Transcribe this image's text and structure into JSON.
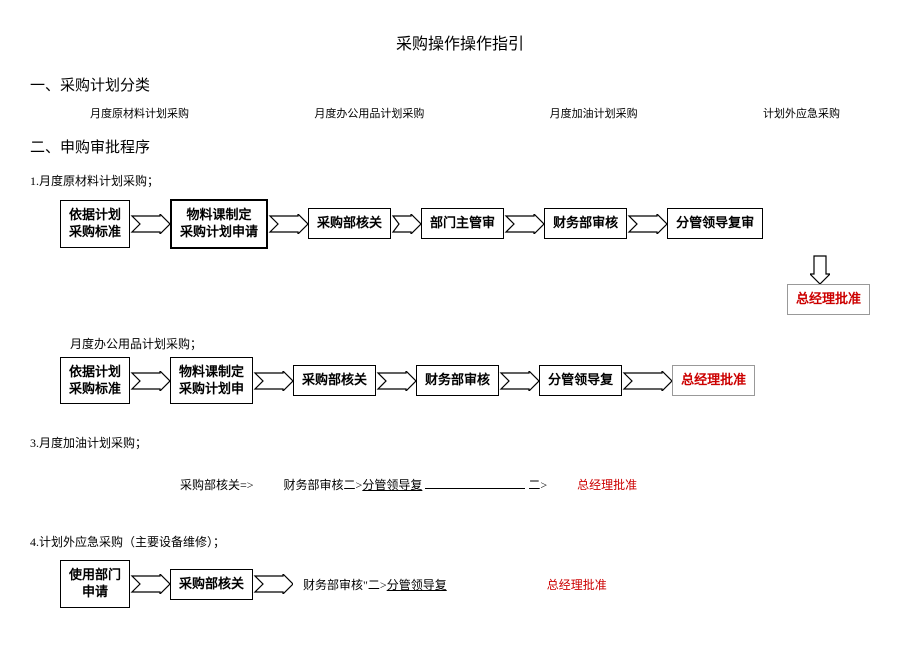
{
  "title": "采购操作操作指引",
  "section1": "一、采购计划分类",
  "categories": [
    "月度原材料计划采购",
    "月度办公用品计划采购",
    "月度加油计划采购",
    "计划外应急采购"
  ],
  "section2": "二、申购审批程序",
  "flow1": {
    "heading": "1.月度原材料计划采购；",
    "nodes": [
      "依据计划\n采购标准",
      "物料课制定\n采购计划申请",
      "采购部核关",
      "部门主管审",
      "财务部审核",
      "分管领导复审"
    ],
    "final": "总经理批准"
  },
  "flow2": {
    "heading": "月度办公用品计划采购；",
    "nodes": [
      "依据计划\n采购标准",
      "物料课制定\n采购计划申",
      "采购部核关",
      "财务部审核",
      "分管领导复"
    ],
    "final": "总经理批准"
  },
  "flow3": {
    "heading": "3.月度加油计划采购；",
    "text1": "采购部核关=>",
    "text2_a": "财务部审核二>",
    "text2_b": "分管领导复",
    "text3": "二>",
    "final": "总经理批准"
  },
  "flow4": {
    "heading": "4.计划外应急采购（主要设备维修）；",
    "nodes": [
      "使用部门\n申请",
      "采购部核关"
    ],
    "text_a": "财务部审核\"二>",
    "text_b": "分管领导复",
    "final": "总经理批准"
  },
  "colors": {
    "red": "#cc0000",
    "border": "#000000"
  }
}
